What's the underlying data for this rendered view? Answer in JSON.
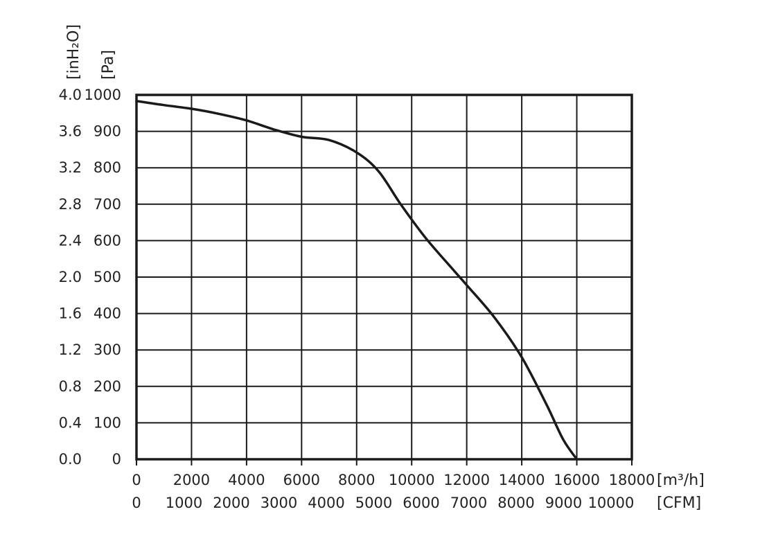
{
  "chart_data": {
    "type": "line",
    "title": "",
    "grid": true,
    "x_primary": {
      "unit_label": "[m³/h]",
      "range": [
        0,
        18000
      ],
      "ticks": [
        "0",
        "2000",
        "4000",
        "6000",
        "8000",
        "10000",
        "12000",
        "14000",
        "16000",
        "18000"
      ]
    },
    "x_secondary": {
      "unit_label": "[CFM]",
      "ticks": [
        "0",
        "1000",
        "2000",
        "3000",
        "4000",
        "5000",
        "6000",
        "7000",
        "8000",
        "9000",
        "10000"
      ]
    },
    "y_primary": {
      "unit_label": "[Pa]",
      "range": [
        0,
        1000
      ],
      "ticks": [
        "0",
        "100",
        "200",
        "300",
        "400",
        "500",
        "600",
        "700",
        "800",
        "900",
        "1000"
      ]
    },
    "y_secondary": {
      "unit_label": "[inH₂O]",
      "ticks": [
        "0.0",
        "0.4",
        "0.8",
        "1.2",
        "1.6",
        "2.0",
        "2.4",
        "2.8",
        "3.2",
        "3.6",
        "4.0"
      ]
    },
    "series": [
      {
        "x": [
          0,
          1000,
          2000,
          3000,
          4000,
          5000,
          6000,
          7000,
          8000,
          8800,
          9600,
          10500,
          11500,
          12000,
          13000,
          14000,
          14900,
          15500,
          16000
        ],
        "y": [
          983,
          972,
          962,
          948,
          930,
          905,
          885,
          876,
          842,
          790,
          700,
          608,
          521,
          478,
          390,
          280,
          150,
          55,
          0
        ]
      }
    ]
  }
}
